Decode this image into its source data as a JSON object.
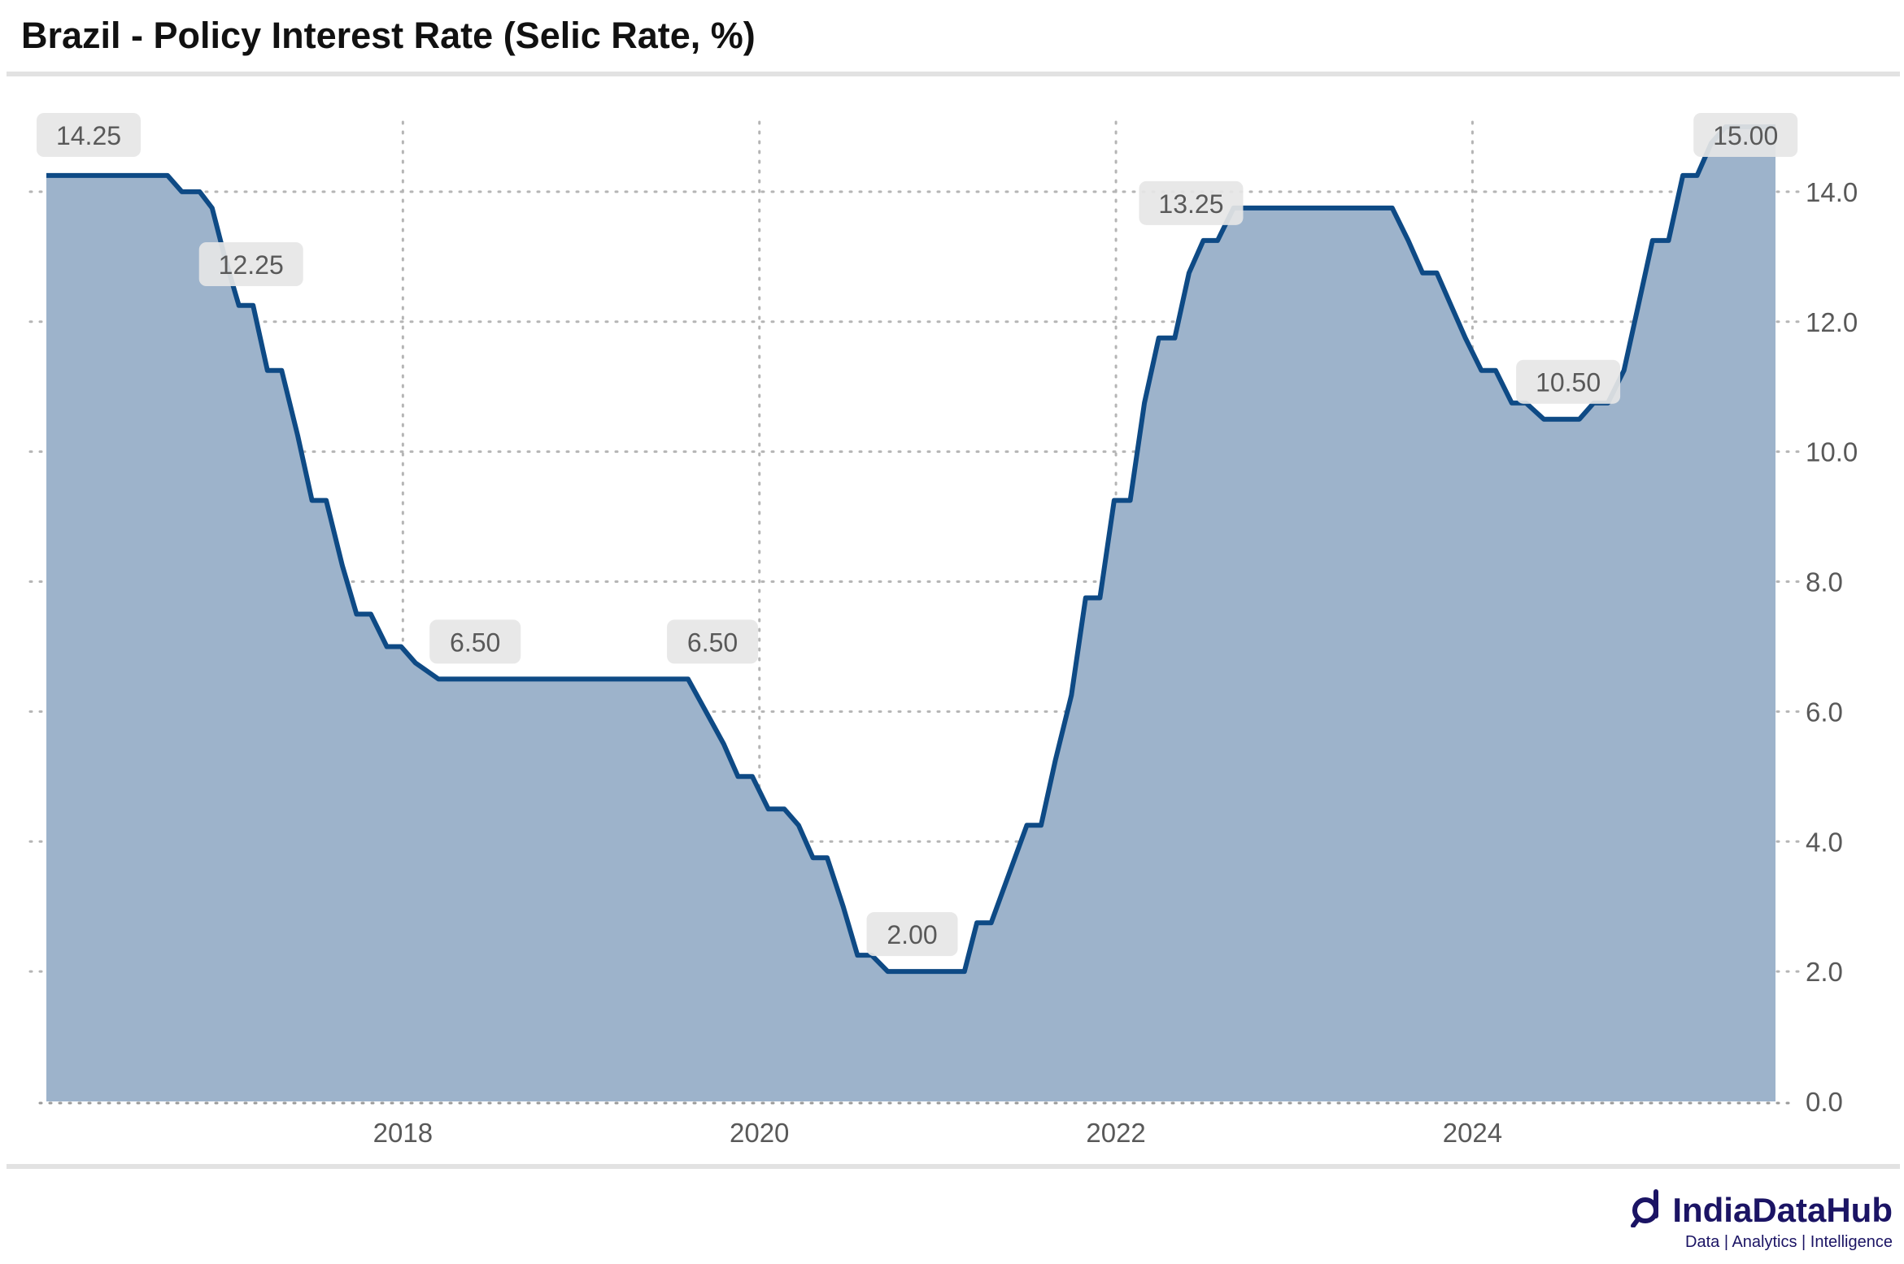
{
  "header": {
    "title": "Brazil - Policy Interest Rate (Selic Rate, %)"
  },
  "brand": {
    "name": "IndiaDataHub",
    "tagline": "Data | Analytics | Intelligence",
    "logo_icon": "magnifier-d-icon"
  },
  "colors": {
    "line": "#0e4a85",
    "area": "#9db3cb",
    "label_bg": "#e6e6e6",
    "grid": "#b5b5b5",
    "text": "#595959"
  },
  "chart_data": {
    "type": "area",
    "title": "Brazil - Policy Interest Rate (Selic Rate, %)",
    "xlabel": "",
    "ylabel": "",
    "xlim": [
      2016.0,
      2025.75
    ],
    "ylim": [
      0,
      15.2
    ],
    "y_axis_position": "right",
    "grid": true,
    "x_ticks": [
      2018,
      2020,
      2022,
      2024
    ],
    "x_tick_labels": [
      "2018",
      "2020",
      "2022",
      "2024"
    ],
    "y_ticks": [
      0,
      2,
      4,
      6,
      8,
      10,
      12,
      14
    ],
    "y_tick_labels": [
      "0.0",
      "2.0",
      "4.0",
      "6.0",
      "8.0",
      "10.0",
      "12.0",
      "14.0"
    ],
    "series": [
      {
        "x": [
          2016.0,
          2016.68,
          2016.76,
          2016.86,
          2016.93,
          2017.0,
          2017.08,
          2017.16,
          2017.24,
          2017.32,
          2017.41,
          2017.49,
          2017.57,
          2017.66,
          2017.74,
          2017.82,
          2017.91,
          2017.99,
          2018.07,
          2018.2,
          2019.6,
          2019.7,
          2019.8,
          2019.88,
          2019.96,
          2020.05,
          2020.14,
          2020.22,
          2020.3,
          2020.38,
          2020.47,
          2020.55,
          2020.63,
          2020.72,
          2021.15,
          2021.22,
          2021.3,
          2021.4,
          2021.5,
          2021.58,
          2021.66,
          2021.75,
          2021.83,
          2021.91,
          2021.99,
          2022.08,
          2022.16,
          2022.24,
          2022.33,
          2022.41,
          2022.49,
          2022.57,
          2022.66,
          2023.55,
          2023.64,
          2023.72,
          2023.8,
          2023.88,
          2023.96,
          2024.05,
          2024.13,
          2024.22,
          2024.3,
          2024.4,
          2024.6,
          2024.68,
          2024.76,
          2024.85,
          2024.93,
          2025.01,
          2025.1,
          2025.18,
          2025.26,
          2025.34,
          2025.42,
          2025.5,
          2025.7
        ],
        "y": [
          14.25,
          14.25,
          14.0,
          14.0,
          13.75,
          13.0,
          12.25,
          12.25,
          11.25,
          11.25,
          10.25,
          9.25,
          9.25,
          8.25,
          7.5,
          7.5,
          7.0,
          7.0,
          6.75,
          6.5,
          6.5,
          6.0,
          5.5,
          5.0,
          5.0,
          4.5,
          4.5,
          4.25,
          3.75,
          3.75,
          3.0,
          2.25,
          2.25,
          2.0,
          2.0,
          2.75,
          2.75,
          3.5,
          4.25,
          4.25,
          5.25,
          6.25,
          7.75,
          7.75,
          9.25,
          9.25,
          10.75,
          11.75,
          11.75,
          12.75,
          13.25,
          13.25,
          13.75,
          13.75,
          13.25,
          12.75,
          12.75,
          12.25,
          11.75,
          11.25,
          11.25,
          10.75,
          10.75,
          10.5,
          10.5,
          10.75,
          10.75,
          11.25,
          12.25,
          13.25,
          13.25,
          14.25,
          14.25,
          14.75,
          15.0,
          15.0,
          15.0
        ]
      }
    ],
    "annotations": [
      {
        "x": 2016.0,
        "y": 14.25,
        "label": "14.25"
      },
      {
        "x": 2017.08,
        "y": 12.25,
        "label": "12.25"
      },
      {
        "x": 2018.2,
        "y": 6.5,
        "label": "6.50"
      },
      {
        "x": 2019.6,
        "y": 6.5,
        "label": "6.50"
      },
      {
        "x": 2020.72,
        "y": 2.0,
        "label": "2.00"
      },
      {
        "x": 2022.49,
        "y": 13.25,
        "label": "13.25"
      },
      {
        "x": 2024.4,
        "y": 10.5,
        "label": "10.50"
      },
      {
        "x": 2025.5,
        "y": 15.0,
        "label": "15.00"
      }
    ]
  }
}
